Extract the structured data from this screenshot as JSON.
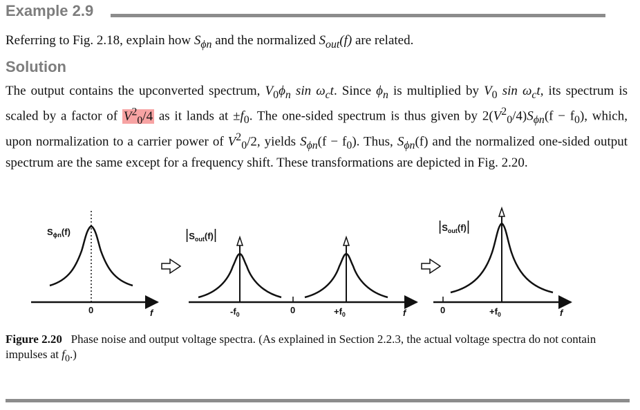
{
  "example": {
    "title": "Example 2.9"
  },
  "question": {
    "pre": "Referring to Fig. 2.18, explain how ",
    "sym1": "S",
    "sym1_sub": "ϕn",
    "mid": " and the normalized ",
    "sym2": "S",
    "sym2_sub": "out",
    "sym2_arg": "(f)",
    "post": " are related."
  },
  "solution": {
    "title": "Solution",
    "p1": "The output contains the upconverted spectrum, ",
    "m1": "V",
    "m1_sub": "0",
    "m1b": "ϕ",
    "m1b_sub": "n",
    "m1c": " sin ω",
    "m1c_sub": "c",
    "m1d": "t",
    "p2": ". Since ",
    "m2": "ϕ",
    "m2_sub": "n",
    "p3": " is multiplied by ",
    "m3": "V",
    "m3_sub": "0",
    "m3b": " sin ω",
    "m3b_sub": "c",
    "m3c": "t",
    "p4": ", its spectrum is scaled by a factor of ",
    "hl_v": "V",
    "hl_sub": "0",
    "hl_sup": "2",
    "hl_rest": "/4",
    "p5": " as it lands at ±",
    "m5": "f",
    "m5_sub": "0",
    "p6": ". The one-sided spectrum is thus given by 2(",
    "m6": "V",
    "m6_sub": "0",
    "m6_sup": "2",
    "p7": "/4)",
    "m7": "S",
    "m7_sub": "ϕn",
    "p8": "(f − f",
    "p8_sub": "0",
    "p9": "), which, upon normalization to a carrier power of ",
    "m9": "V",
    "m9_sub": "0",
    "m9_sup": "2",
    "p10": "/2, yields ",
    "m10": "S",
    "m10_sub": "ϕn",
    "p11": "(f − f",
    "p11_sub": "0",
    "p12": "). Thus, ",
    "m12": "S",
    "m12_sub": "ϕn",
    "p13": "(f) and the normalized one-sided output spectrum are the same except for a frequency shift. These transformations are depicted in Fig. 2.20."
  },
  "figure": {
    "panel1": {
      "ylabel": "S",
      "ylabel_sub": "ϕn",
      "ylabel_arg": "(f)",
      "origin": "0",
      "xlabel": "f"
    },
    "panel2": {
      "ylabel_bars": "|",
      "ylabel": "S",
      "ylabel_sub": "out",
      "ylabel_arg": "(f)",
      "neg_tick": "-f",
      "neg_tick_sub": "0",
      "origin": "0",
      "pos_tick": "+f",
      "pos_tick_sub": "0",
      "xlabel": "f"
    },
    "panel3": {
      "ylabel": "S",
      "ylabel_sub": "out",
      "ylabel_arg": "(f)",
      "origin": "0",
      "pos_tick": "+f",
      "pos_tick_sub": "0",
      "xlabel": "f"
    }
  },
  "caption": {
    "label": "Figure 2.20",
    "text": "Phase noise and output voltage spectra. (As explained in Section 2.2.3, the actual voltage spectra do not contain impulses at ",
    "sym": "f",
    "sym_sub": "0",
    "end": ".)"
  }
}
